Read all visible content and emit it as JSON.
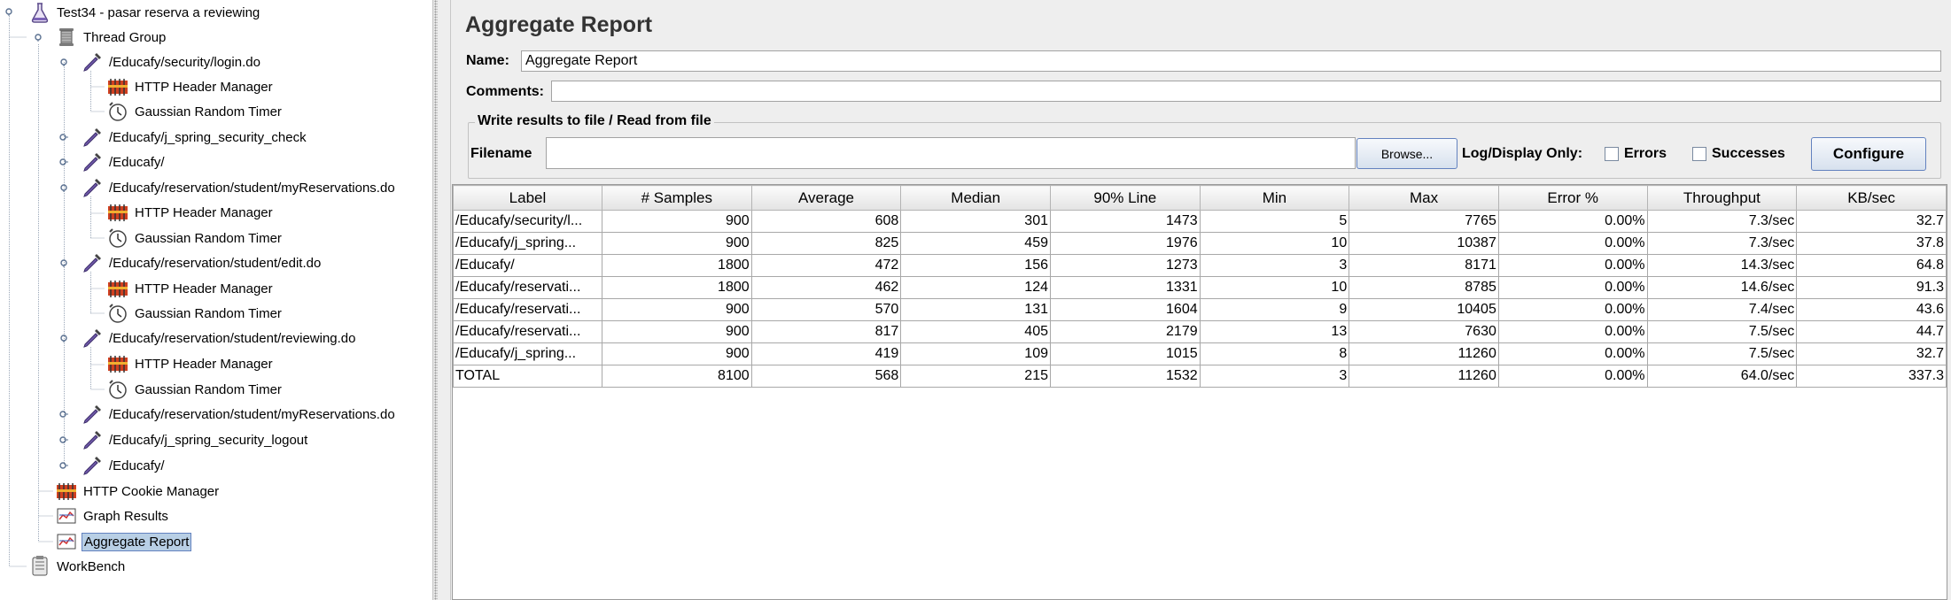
{
  "tree": {
    "nodes": [
      {
        "label": "Test34 - pasar reserva a reviewing",
        "icon": "flask-icon"
      },
      {
        "label": "Thread Group",
        "icon": "spool-icon"
      },
      {
        "label": "/Educafy/security/login.do",
        "icon": "pipette-icon"
      },
      {
        "label": "HTTP Header Manager",
        "icon": "header-manager-icon"
      },
      {
        "label": "Gaussian Random Timer",
        "icon": "timer-icon"
      },
      {
        "label": "/Educafy/j_spring_security_check",
        "icon": "pipette-icon"
      },
      {
        "label": "/Educafy/",
        "icon": "pipette-icon"
      },
      {
        "label": "/Educafy/reservation/student/myReservations.do",
        "icon": "pipette-icon"
      },
      {
        "label": "HTTP Header Manager",
        "icon": "header-manager-icon"
      },
      {
        "label": "Gaussian Random Timer",
        "icon": "timer-icon"
      },
      {
        "label": "/Educafy/reservation/student/edit.do",
        "icon": "pipette-icon"
      },
      {
        "label": "HTTP Header Manager",
        "icon": "header-manager-icon"
      },
      {
        "label": "Gaussian Random Timer",
        "icon": "timer-icon"
      },
      {
        "label": "/Educafy/reservation/student/reviewing.do",
        "icon": "pipette-icon"
      },
      {
        "label": "HTTP Header Manager",
        "icon": "header-manager-icon"
      },
      {
        "label": "Gaussian Random Timer",
        "icon": "timer-icon"
      },
      {
        "label": "/Educafy/reservation/student/myReservations.do",
        "icon": "pipette-icon"
      },
      {
        "label": "/Educafy/j_spring_security_logout",
        "icon": "pipette-icon"
      },
      {
        "label": "/Educafy/",
        "icon": "pipette-icon"
      },
      {
        "label": "HTTP Cookie Manager",
        "icon": "cookie-manager-icon"
      },
      {
        "label": "Graph Results",
        "icon": "graph-listener-icon"
      },
      {
        "label": "Aggregate Report",
        "icon": "graph-listener-icon"
      },
      {
        "label": "WorkBench",
        "icon": "workbench-icon"
      }
    ]
  },
  "panel": {
    "title": "Aggregate Report",
    "name_label": "Name:",
    "name_value": "Aggregate Report",
    "comments_label": "Comments:",
    "comments_value": "",
    "group_title": "Write results to file / Read from file",
    "filename_label": "Filename",
    "filename_value": "",
    "browse_button": "Browse...",
    "log_display_label": "Log/Display Only:",
    "errors_label": "Errors",
    "successes_label": "Successes",
    "configure_button": "Configure",
    "errors_checked": false,
    "successes_checked": false
  },
  "table": {
    "columns": [
      "Label",
      "# Samples",
      "Average",
      "Median",
      "90% Line",
      "Min",
      "Max",
      "Error %",
      "Throughput",
      "KB/sec"
    ],
    "rows": [
      [
        "/Educafy/security/l...",
        "900",
        "608",
        "301",
        "1473",
        "5",
        "7765",
        "0.00%",
        "7.3/sec",
        "32.7"
      ],
      [
        "/Educafy/j_spring...",
        "900",
        "825",
        "459",
        "1976",
        "10",
        "10387",
        "0.00%",
        "7.3/sec",
        "37.8"
      ],
      [
        "/Educafy/",
        "1800",
        "472",
        "156",
        "1273",
        "3",
        "8171",
        "0.00%",
        "14.3/sec",
        "64.8"
      ],
      [
        "/Educafy/reservati...",
        "1800",
        "462",
        "124",
        "1331",
        "10",
        "8785",
        "0.00%",
        "14.6/sec",
        "91.3"
      ],
      [
        "/Educafy/reservati...",
        "900",
        "570",
        "131",
        "1604",
        "9",
        "10405",
        "0.00%",
        "7.4/sec",
        "43.6"
      ],
      [
        "/Educafy/reservati...",
        "900",
        "817",
        "405",
        "2179",
        "13",
        "7630",
        "0.00%",
        "7.5/sec",
        "44.7"
      ],
      [
        "/Educafy/j_spring...",
        "900",
        "419",
        "109",
        "1015",
        "8",
        "11260",
        "0.00%",
        "7.5/sec",
        "32.7"
      ],
      [
        "TOTAL",
        "8100",
        "568",
        "215",
        "1532",
        "3",
        "11260",
        "0.00%",
        "64.0/sec",
        "337.3"
      ]
    ]
  }
}
